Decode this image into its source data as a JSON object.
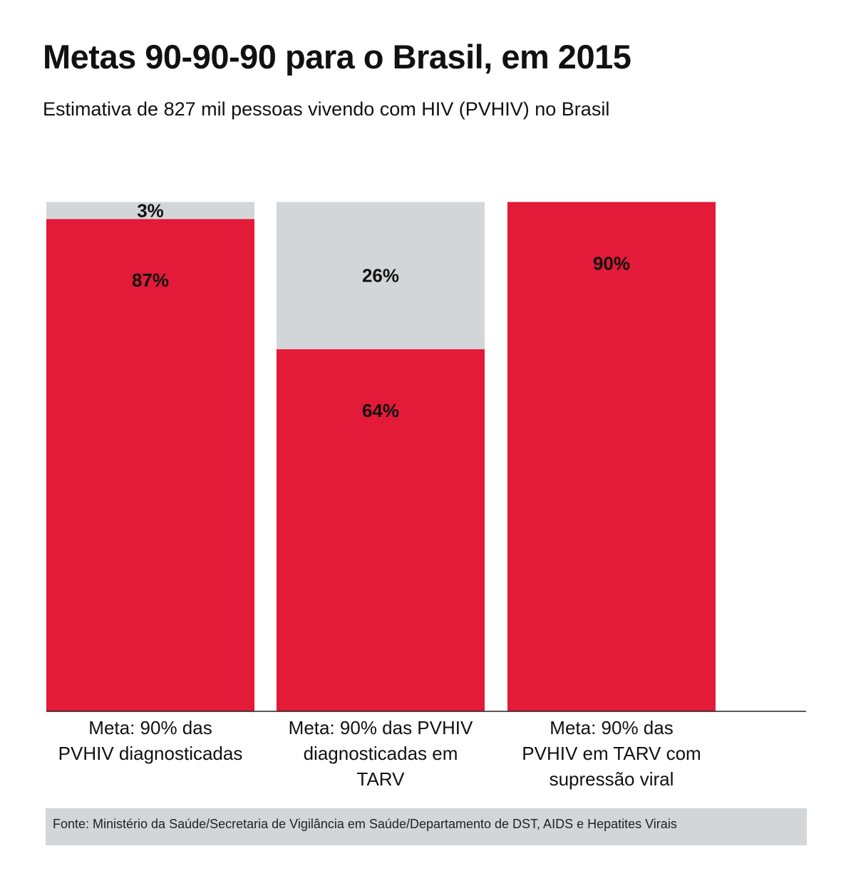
{
  "colors": {
    "primary": "#e31a38",
    "secondary": "#d3d6d9",
    "axis": "#222222"
  },
  "chart_data": {
    "type": "bar",
    "stacked": true,
    "title": "Metas 90-90-90 para o Brasil, em 2015",
    "subtitle": "Estimativa de 827 mil pessoas vivendo com HIV (PVHIV) no Brasil",
    "categories": [
      "Meta: 90% das PVHIV diagnosticadas",
      "Meta: 90% das PVHIV diagnosticadas em TARV",
      "Meta: 90% das PVHIV em TARV com supressão viral"
    ],
    "category_lines": [
      [
        "Meta: 90% das",
        "PVHIV diagnosticadas"
      ],
      [
        "Meta: 90% das PVHIV",
        "diagnosticadas em",
        "TARV"
      ],
      [
        "Meta: 90% das",
        "PVHIV em TARV com",
        "supressão viral"
      ]
    ],
    "series": [
      {
        "name": "achieved",
        "color": "#e31a38",
        "values": [
          87,
          64,
          90
        ],
        "labels": [
          "87%",
          "64%",
          "90%"
        ]
      },
      {
        "name": "gap",
        "color": "#d3d6d9",
        "values": [
          3,
          26,
          0
        ],
        "labels": [
          "3%",
          "26%",
          ""
        ]
      }
    ],
    "ylim": [
      0,
      100
    ],
    "grid": false
  },
  "source": "Fonte: Ministério da Saúde/Secretaria de Vigilância em Saúde/Departamento de DST, AIDS e Hepatites Virais"
}
